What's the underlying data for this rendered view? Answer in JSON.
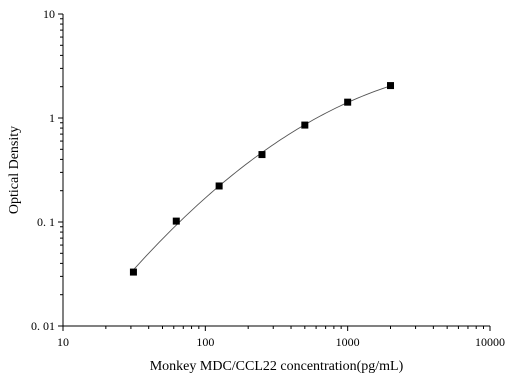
{
  "chart_data": {
    "type": "scatter",
    "title": "",
    "xlabel": "Monkey MDC/CCL22  concentration(pg/mL)",
    "ylabel": "Optical Density",
    "xscale": "log",
    "yscale": "log",
    "xlim": [
      10,
      10000
    ],
    "ylim": [
      0.01,
      10
    ],
    "x_ticks": [
      10,
      100,
      1000,
      10000
    ],
    "x_tick_labels": [
      "10",
      "100",
      "1000",
      "10000"
    ],
    "y_ticks": [
      0.01,
      0.1,
      1,
      10
    ],
    "y_tick_labels": [
      "0. 01",
      "0. 1",
      "1",
      "10"
    ],
    "grid": false,
    "series": [
      {
        "marker": "square",
        "fit": "smooth-curve",
        "x": [
          31.25,
          62.5,
          125,
          250,
          500,
          1000,
          2000
        ],
        "y": [
          0.033,
          0.102,
          0.222,
          0.445,
          0.855,
          1.42,
          2.05
        ]
      }
    ]
  }
}
